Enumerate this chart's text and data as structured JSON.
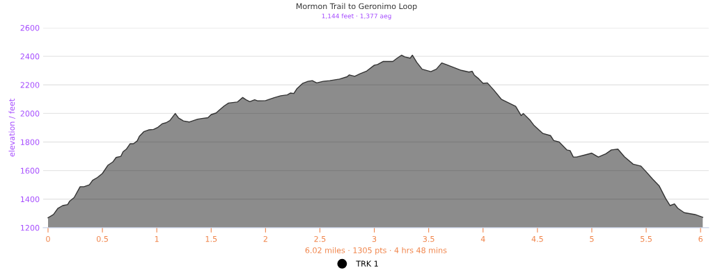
{
  "chart_data": {
    "type": "area",
    "title": "Mormon Trail to Geronimo Loop",
    "subtitle": "1,144 feet · 1,377 aeg",
    "xlabel": "6.02 miles · 1305 pts · 4 hrs 48 mins",
    "ylabel": "elevation / feet",
    "series": [
      {
        "name": "TRK 1",
        "color": "#000000",
        "x": [
          0,
          0.05,
          0.09,
          0.135,
          0.18,
          0.2,
          0.24,
          0.295,
          0.33,
          0.38,
          0.41,
          0.455,
          0.5,
          0.55,
          0.595,
          0.626,
          0.67,
          0.69,
          0.72,
          0.755,
          0.785,
          0.82,
          0.84,
          0.88,
          0.925,
          0.97,
          1.01,
          1.05,
          1.085,
          1.12,
          1.17,
          1.2,
          1.245,
          1.3,
          1.375,
          1.415,
          1.47,
          1.5,
          1.545,
          1.575,
          1.62,
          1.66,
          1.74,
          1.79,
          1.82,
          1.855,
          1.9,
          1.93,
          2.0,
          2.08,
          2.14,
          2.2,
          2.23,
          2.26,
          2.29,
          2.34,
          2.39,
          2.43,
          2.47,
          2.53,
          2.59,
          2.68,
          2.75,
          2.77,
          2.82,
          2.87,
          2.93,
          3.0,
          3.03,
          3.08,
          3.17,
          3.21,
          3.25,
          3.28,
          3.33,
          3.35,
          3.39,
          3.44,
          3.52,
          3.57,
          3.62,
          3.66,
          3.73,
          3.8,
          3.87,
          3.9,
          3.92,
          3.96,
          4.0,
          4.04,
          4.1,
          4.17,
          4.3,
          4.35,
          4.37,
          4.43,
          4.47,
          4.55,
          4.62,
          4.65,
          4.7,
          4.77,
          4.8,
          4.83,
          4.86,
          4.94,
          5.0,
          5.06,
          5.13,
          5.18,
          5.24,
          5.3,
          5.38,
          5.45,
          5.49,
          5.56,
          5.62,
          5.68,
          5.72,
          5.76,
          5.79,
          5.85,
          5.95,
          6.02
        ],
        "values": [
          1270,
          1292,
          1335,
          1355,
          1362,
          1387,
          1411,
          1487,
          1487,
          1500,
          1532,
          1552,
          1580,
          1637,
          1660,
          1692,
          1700,
          1732,
          1750,
          1788,
          1788,
          1808,
          1840,
          1872,
          1885,
          1888,
          1903,
          1928,
          1935,
          1950,
          2000,
          1968,
          1948,
          1940,
          1960,
          1965,
          1970,
          1992,
          2003,
          2024,
          2053,
          2073,
          2080,
          2112,
          2096,
          2083,
          2096,
          2088,
          2090,
          2111,
          2124,
          2130,
          2143,
          2140,
          2175,
          2210,
          2225,
          2230,
          2214,
          2225,
          2230,
          2241,
          2257,
          2270,
          2260,
          2278,
          2297,
          2338,
          2343,
          2364,
          2364,
          2387,
          2408,
          2396,
          2387,
          2408,
          2359,
          2310,
          2293,
          2310,
          2354,
          2343,
          2322,
          2302,
          2290,
          2295,
          2268,
          2243,
          2211,
          2214,
          2163,
          2098,
          2050,
          1985,
          2000,
          1955,
          1915,
          1860,
          1845,
          1810,
          1800,
          1745,
          1740,
          1695,
          1695,
          1710,
          1722,
          1695,
          1718,
          1745,
          1750,
          1697,
          1645,
          1632,
          1600,
          1540,
          1492,
          1403,
          1355,
          1367,
          1337,
          1305,
          1292,
          1273
        ]
      }
    ],
    "xlim": [
      -0.045,
      6.075
    ],
    "xticks": [
      0,
      0.5,
      1,
      1.5,
      2,
      2.5,
      3,
      3.5,
      4,
      4.5,
      5,
      5.5,
      6
    ],
    "ylim": [
      1200,
      2600
    ],
    "yticks": [
      1200,
      1400,
      1600,
      1800,
      2000,
      2200,
      2400,
      2600
    ],
    "grid": "y",
    "legend": "bottom",
    "marker": "none",
    "line_style": "solid"
  }
}
